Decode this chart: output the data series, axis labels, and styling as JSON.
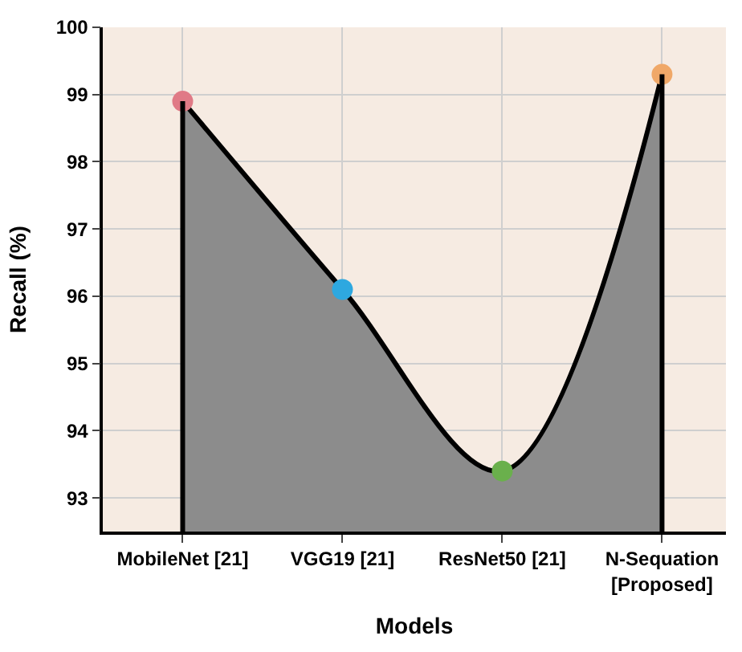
{
  "chart_data": {
    "type": "area",
    "xlabel": "Models",
    "ylabel": "Recall (%)",
    "categories": [
      "MobileNet [21]",
      "VGG19 [21]",
      "ResNet50 [21]",
      "N-Sequation\n[Proposed]"
    ],
    "series": [
      {
        "color": "#8c8c8c",
        "colors": [
          "#e07a86",
          "#2ea8e0",
          "#6ab04c",
          "#f0a868"
        ],
        "values": [
          98.9,
          96.1,
          93.4,
          99.3
        ]
      }
    ],
    "ylim": [
      92.5,
      100
    ],
    "yticks": [
      93,
      94,
      95,
      96,
      97,
      98,
      99,
      100
    ],
    "grid": true,
    "marker": "circle",
    "line_style": "solid"
  }
}
